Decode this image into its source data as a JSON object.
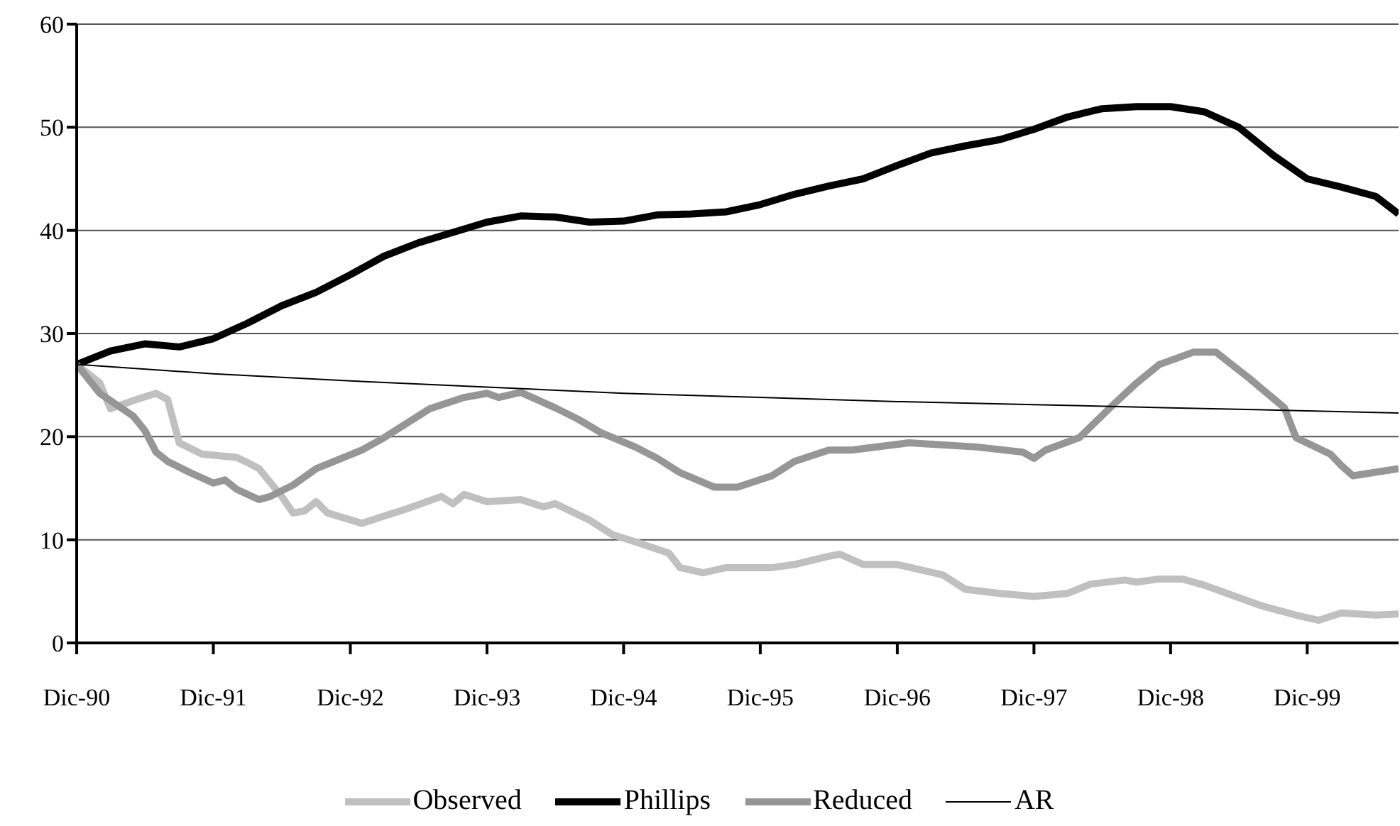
{
  "chart_data": {
    "type": "line",
    "xlim": [
      "1990-12",
      "2000-08"
    ],
    "xticks": [
      {
        "value": "1990-12",
        "label": "Dic-90"
      },
      {
        "value": "1991-12",
        "label": "Dic-91"
      },
      {
        "value": "1992-12",
        "label": "Dic-92"
      },
      {
        "value": "1993-12",
        "label": "Dic-93"
      },
      {
        "value": "1994-12",
        "label": "Dic-94"
      },
      {
        "value": "1995-12",
        "label": "Dic-95"
      },
      {
        "value": "1996-12",
        "label": "Dic-96"
      },
      {
        "value": "1997-12",
        "label": "Dic-97"
      },
      {
        "value": "1998-12",
        "label": "Dic-98"
      },
      {
        "value": "1999-12",
        "label": "Dic-99"
      }
    ],
    "ylim": [
      0,
      60
    ],
    "yticks": [
      0,
      10,
      20,
      30,
      40,
      50,
      60
    ],
    "grid": "y",
    "legend": "bottom",
    "marker": "none",
    "line_style": "solid",
    "series": [
      {
        "name": "Observed",
        "color": "#c0c0c0",
        "x": [
          "1990-12",
          "1991-02",
          "1991-03",
          "1991-05",
          "1991-07",
          "1991-08",
          "1991-09",
          "1991-11",
          "1992-02",
          "1992-03",
          "1992-04",
          "1992-06",
          "1992-07",
          "1992-08",
          "1992-09",
          "1992-10",
          "1993-01",
          "1993-03",
          "1993-05",
          "1993-08",
          "1993-09",
          "1993-10",
          "1993-12",
          "1994-03",
          "1994-05",
          "1994-06",
          "1994-09",
          "1994-11",
          "1995-01",
          "1995-04",
          "1995-05",
          "1995-07",
          "1995-09",
          "1996-01",
          "1996-03",
          "1996-06",
          "1996-07",
          "1996-09",
          "1996-12",
          "1997-04",
          "1997-06",
          "1997-09",
          "1997-12",
          "1998-03",
          "1998-05",
          "1998-08",
          "1998-09",
          "1998-11",
          "1999-01",
          "1999-03",
          "1999-05",
          "1999-08",
          "1999-11",
          "2000-01",
          "2000-03",
          "2000-06",
          "2000-08"
        ],
        "values": [
          27,
          25.2,
          22.7,
          23.5,
          24.2,
          23.6,
          19.4,
          18.3,
          18,
          17.5,
          16.9,
          14.2,
          12.6,
          12.8,
          13.7,
          12.6,
          11.6,
          12.3,
          13,
          14.2,
          13.5,
          14.4,
          13.7,
          13.9,
          13.2,
          13.5,
          11.9,
          10.5,
          9.8,
          8.7,
          7.3,
          6.8,
          7.3,
          7.3,
          7.6,
          8.4,
          8.6,
          7.6,
          7.6,
          6.6,
          5.2,
          4.8,
          4.5,
          4.8,
          5.7,
          6.1,
          5.9,
          6.2,
          6.2,
          5.6,
          4.8,
          3.6,
          2.7,
          2.2,
          2.9,
          2.7,
          2.8
        ]
      },
      {
        "name": "Phillips",
        "color": "#000000",
        "x": [
          "1990-12",
          "1991-03",
          "1991-06",
          "1991-09",
          "1991-12",
          "1992-03",
          "1992-06",
          "1992-09",
          "1992-12",
          "1993-03",
          "1993-06",
          "1993-09",
          "1993-12",
          "1994-03",
          "1994-06",
          "1994-09",
          "1994-12",
          "1995-03",
          "1995-06",
          "1995-09",
          "1995-12",
          "1996-03",
          "1996-06",
          "1996-09",
          "1996-12",
          "1997-03",
          "1997-06",
          "1997-09",
          "1997-12",
          "1998-03",
          "1998-06",
          "1998-09",
          "1998-12",
          "1999-03",
          "1999-06",
          "1999-09",
          "1999-12",
          "2000-03",
          "2000-06",
          "2000-08"
        ],
        "values": [
          27,
          28.3,
          29,
          28.7,
          29.5,
          31,
          32.7,
          34,
          35.7,
          37.5,
          38.8,
          39.8,
          40.8,
          41.4,
          41.3,
          40.8,
          40.9,
          41.5,
          41.6,
          41.8,
          42.5,
          43.5,
          44.3,
          45,
          46.3,
          47.5,
          48.2,
          48.8,
          49.8,
          51,
          51.8,
          52,
          52,
          51.5,
          50,
          47.3,
          45,
          44.2,
          43.3,
          41.6
        ]
      },
      {
        "name": "Reduced",
        "color": "#969696",
        "x": [
          "1990-12",
          "1991-02",
          "1991-05",
          "1991-06",
          "1991-07",
          "1991-08",
          "1991-10",
          "1991-12",
          "1992-01",
          "1992-02",
          "1992-04",
          "1992-05",
          "1992-07",
          "1992-09",
          "1993-01",
          "1993-03",
          "1993-07",
          "1993-10",
          "1993-12",
          "1994-01",
          "1994-03",
          "1994-06",
          "1994-08",
          "1994-10",
          "1995-01",
          "1995-03",
          "1995-05",
          "1995-08",
          "1995-10",
          "1996-01",
          "1996-03",
          "1996-06",
          "1996-08",
          "1997-01",
          "1997-07",
          "1997-11",
          "1997-12",
          "1998-01",
          "1998-04",
          "1998-07",
          "1998-09",
          "1998-11",
          "1999-02",
          "1999-04",
          "1999-07",
          "1999-10",
          "1999-11",
          "2000-02",
          "2000-03",
          "2000-04",
          "2000-08"
        ],
        "values": [
          27,
          24.2,
          22,
          20.6,
          18.5,
          17.6,
          16.5,
          15.5,
          15.8,
          14.9,
          13.9,
          14.2,
          15.3,
          16.9,
          18.7,
          19.9,
          22.7,
          23.8,
          24.2,
          23.8,
          24.3,
          22.8,
          21.7,
          20.4,
          19,
          17.9,
          16.5,
          15.1,
          15.1,
          16.2,
          17.6,
          18.7,
          18.7,
          19.4,
          19,
          18.5,
          17.9,
          18.7,
          19.9,
          23.1,
          25.2,
          27,
          28.2,
          28.2,
          25.6,
          22.8,
          19.9,
          18.3,
          17.2,
          16.2,
          16.9
        ]
      },
      {
        "name": "AR",
        "color": "#000000",
        "x": [
          "1990-12",
          "1991-12",
          "1992-12",
          "1993-12",
          "1994-12",
          "1995-12",
          "1996-12",
          "1997-12",
          "1998-12",
          "1999-12",
          "2000-08"
        ],
        "values": [
          27,
          26.1,
          25.4,
          24.8,
          24.2,
          23.8,
          23.4,
          23.1,
          22.8,
          22.5,
          22.3
        ]
      }
    ]
  }
}
